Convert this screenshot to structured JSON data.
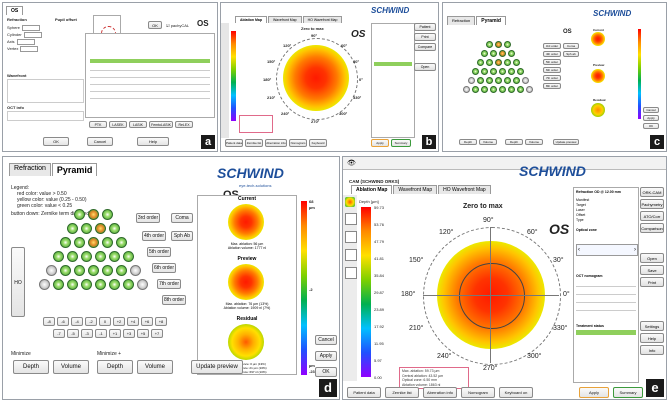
{
  "figure_labels": {
    "a": "a",
    "b": "b",
    "c": "c",
    "d": "d",
    "e": "e"
  },
  "brand": {
    "name": "SCHWIND",
    "tagline": "eye-tech-solutions"
  },
  "colors": {
    "brand_blue": "#1d4e9a",
    "ok_green": "#3c9a3c",
    "warn_orange": "#e8a23a",
    "pink": "#e06a8a"
  },
  "panel_a": {
    "tab_label": "OS",
    "refraction_header": "Refraction",
    "pupil_header": "Pupil offset",
    "rows": [
      {
        "label": "Sphere",
        "value": "0.00"
      },
      {
        "label": "Cylinder",
        "value": "0.00"
      },
      {
        "label": "Axis",
        "value": "0"
      },
      {
        "label": "Vertex",
        "value": "12.00"
      }
    ],
    "ok_label": "OK",
    "pachy_label": "pachyCAL",
    "os_label": "OS",
    "section_2": "Wavefront",
    "section_3": "OCT info",
    "bottom_buttons": [
      "PTK",
      "LASEK",
      "LASIK",
      "FemtoLASIK",
      "ReLEX"
    ],
    "footer_buttons": [
      "OK",
      "Cancel",
      "Help"
    ]
  },
  "panel_b": {
    "title_os": "OS",
    "zone_label": "Zero to max",
    "tabs": [
      "Ablation Map",
      "Wavefront Map",
      "HO Wavefront Map"
    ],
    "angles": [
      "90°",
      "60°",
      "30°",
      "0°",
      "330°",
      "300°",
      "270°",
      "240°",
      "210°",
      "180°",
      "150°",
      "120°"
    ],
    "side_buttons": [
      "Patient",
      "Print",
      "Compare",
      "Open"
    ],
    "bottom_buttons": [
      "Patient data",
      "Zernike list",
      "Aberration info",
      "Nomogram",
      "Keyboard",
      "Apply",
      "Summary"
    ]
  },
  "panel_c": {
    "tabs": [
      "Refraction",
      "Pyramid"
    ],
    "os_label": "OS",
    "order_buttons": [
      "3rd order",
      "4th order",
      "5th order",
      "6th order",
      "7th order",
      "8th order"
    ],
    "side_buttons": [
      "Coma",
      "Sph ab"
    ],
    "map_titles": [
      "Current",
      "Preview",
      "Residual"
    ],
    "right_buttons": [
      "Cancel",
      "Apply",
      "OK"
    ],
    "minimize_buttons": [
      "Depth",
      "Volume",
      "Depth",
      "Volume",
      "Update preview"
    ]
  },
  "panel_d": {
    "tabs": [
      "Refraction",
      "Pyramid"
    ],
    "os_label": "OS",
    "legend_title": "Legend:",
    "legend_lines": [
      "red color:  value > 0.50",
      "yellow color: value (0.25 - 0.50)",
      "green color: value < 0.25"
    ],
    "legend_note": "button down: Zernike term disabled",
    "ho_label": "HO",
    "order_buttons": [
      "3rd order",
      "4th order",
      "5th order",
      "6th order",
      "7th order",
      "8th order"
    ],
    "side_buttons": [
      "Coma",
      "Sph Ab"
    ],
    "map_titles": [
      "Current",
      "Preview",
      "Residual"
    ],
    "map_notes": [
      [
        "Max. ablation: 56 µm",
        "Ablation volume: 1777 nl"
      ],
      [
        "Max. ablation: 76 µm (13%)",
        "Ablation volume: 1909 nl (7%)"
      ],
      [
        "Max. difference: 0 µm (13%)",
        "Max. difference: 21 µm (16%)",
        "Max. difference: 697 nl (10%)"
      ]
    ],
    "scale_labels": {
      "top": "68",
      "unit": "µm",
      "mid": "-2",
      "bottom": "µm",
      "bottom2": "-23"
    },
    "term_row_1": [
      "-8",
      "-6",
      "-4",
      "-2",
      "0",
      "+2",
      "+4",
      "+6",
      "+8"
    ],
    "term_row_2": [
      "-7",
      "-5",
      "-3",
      "-1",
      "+1",
      "+3",
      "+5",
      "+7"
    ],
    "minimize_label_1": "Minimize",
    "minimize_label_2": "Minimize +",
    "minimize_buttons_1": [
      "Depth",
      "Volume"
    ],
    "minimize_buttons_2": [
      "Depth",
      "Volume"
    ],
    "update_button": "Update preview",
    "right_buttons": [
      "Cancel",
      "Apply",
      "OK"
    ],
    "fig_label": "d"
  },
  "panel_e": {
    "window_title": "CAM (SCHWIND ORKS)",
    "tabs": [
      "Ablation Map",
      "Wavefront Map",
      "HO Wavefront Map"
    ],
    "os_label": "OS",
    "zone_label": "Zero to max",
    "scale_title": "Depth [µm]",
    "scale_values": [
      "59.73",
      "53.76",
      "47.79",
      "41.81",
      "35.84",
      "29.87",
      "23.89",
      "17.92",
      "11.95",
      "5.97",
      "0.00"
    ],
    "angles": [
      "90°",
      "60°",
      "30°",
      "0°",
      "330°",
      "300°",
      "270°",
      "240°",
      "210°",
      "180°",
      "150°",
      "120°"
    ],
    "info_lines": [
      "Max. ablation: 59.73 µm",
      "Central ablation: 43.52 µm",
      "Optical zone: 6.50 mm",
      "Ablation volume: 1863 nl"
    ],
    "right_header": "Refraction OD @ 12.00 mm",
    "right_rows": [
      "Manifest",
      "Target",
      "Laser",
      "Offset",
      "Type"
    ],
    "right_section_2": "Optical zone",
    "right_section_3": "OCT nomogram",
    "right_section_4": "Treatment status",
    "right_side_buttons": [
      "ORK-CAM",
      "Pachymetry",
      "ATO/Corr",
      "Comparison",
      "Open",
      "Save",
      "Print",
      "Settings",
      "Help",
      "Info"
    ],
    "bottom_buttons": [
      "Patient data",
      "Zernike list",
      "Aberration info",
      "Nomogram",
      "Keyboard on",
      "Apply",
      "Summary"
    ],
    "fig_label": "e"
  }
}
